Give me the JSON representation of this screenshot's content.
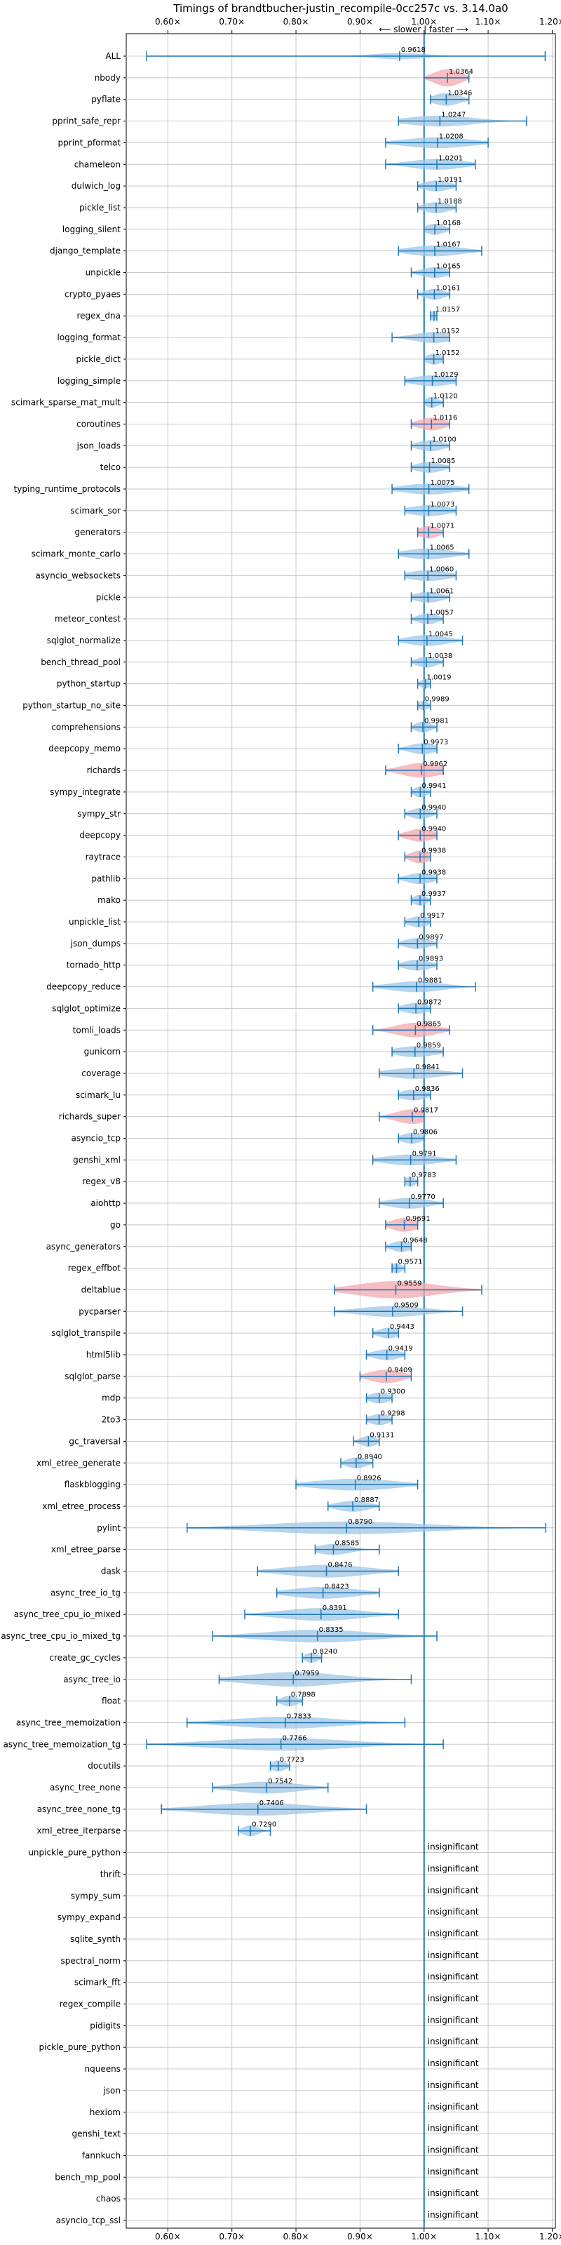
{
  "chart_data": {
    "type": "violin",
    "title": "Timings of brandtbucher-justin_recompile-0cc257c vs. 3.14.0a0",
    "annotation": "⟵ slower | faster ⟶",
    "xlim": [
      0.535,
      1.205
    ],
    "xticks": [
      0.6,
      0.7,
      0.8,
      0.9,
      1.0,
      1.1,
      1.2
    ],
    "xtick_labels": [
      "0.60×",
      "0.70×",
      "0.80×",
      "0.90×",
      "1.00×",
      "1.10×",
      "1.20×"
    ],
    "reference_line": 1.0,
    "grid": true,
    "colors": {
      "faster": "#9ec6e6",
      "slower": "#f3a7ad",
      "line": "#1f77b4",
      "grid": "#c8c8c8"
    },
    "insignificant_label": "insignificant",
    "benchmarks": [
      {
        "name": "ALL",
        "median": 0.9618,
        "min": 0.567,
        "max": 1.189,
        "spread": 0.04,
        "width": 0.35,
        "color": "faster"
      },
      {
        "name": "nbody",
        "median": 1.0364,
        "min": 1.0,
        "max": 1.07,
        "spread": 0.02,
        "width": 0.95,
        "color": "slower"
      },
      {
        "name": "pyflate",
        "median": 1.0346,
        "min": 1.01,
        "max": 1.07,
        "spread": 0.02,
        "width": 0.7,
        "color": "faster"
      },
      {
        "name": "pprint_safe_repr",
        "median": 1.0247,
        "min": 0.96,
        "max": 1.16,
        "spread": 0.05,
        "width": 0.6,
        "color": "faster"
      },
      {
        "name": "pprint_pformat",
        "median": 1.0208,
        "min": 0.94,
        "max": 1.1,
        "spread": 0.05,
        "width": 0.6,
        "color": "faster"
      },
      {
        "name": "chameleon",
        "median": 1.0201,
        "min": 0.94,
        "max": 1.08,
        "spread": 0.04,
        "width": 0.6,
        "color": "faster"
      },
      {
        "name": "dulwich_log",
        "median": 1.0191,
        "min": 0.99,
        "max": 1.05,
        "spread": 0.02,
        "width": 0.6,
        "color": "faster"
      },
      {
        "name": "pickle_list",
        "median": 1.0188,
        "min": 0.99,
        "max": 1.05,
        "spread": 0.02,
        "width": 0.6,
        "color": "faster"
      },
      {
        "name": "logging_silent",
        "median": 1.0168,
        "min": 1.0,
        "max": 1.04,
        "spread": 0.015,
        "width": 0.6,
        "color": "faster"
      },
      {
        "name": "django_template",
        "median": 1.0167,
        "min": 0.96,
        "max": 1.09,
        "spread": 0.04,
        "width": 0.6,
        "color": "faster"
      },
      {
        "name": "unpickle",
        "median": 1.0165,
        "min": 0.98,
        "max": 1.04,
        "spread": 0.02,
        "width": 0.6,
        "color": "faster"
      },
      {
        "name": "crypto_pyaes",
        "median": 1.0161,
        "min": 0.99,
        "max": 1.04,
        "spread": 0.015,
        "width": 0.6,
        "color": "faster"
      },
      {
        "name": "regex_dna",
        "median": 1.0157,
        "min": 1.01,
        "max": 1.02,
        "spread": 0.006,
        "width": 0.55,
        "color": "faster"
      },
      {
        "name": "logging_format",
        "median": 1.0152,
        "min": 0.95,
        "max": 1.04,
        "spread": 0.03,
        "width": 0.6,
        "color": "faster"
      },
      {
        "name": "pickle_dict",
        "median": 1.0152,
        "min": 1.0,
        "max": 1.03,
        "spread": 0.012,
        "width": 0.6,
        "color": "faster"
      },
      {
        "name": "logging_simple",
        "median": 1.0129,
        "min": 0.97,
        "max": 1.05,
        "spread": 0.03,
        "width": 0.6,
        "color": "faster"
      },
      {
        "name": "scimark_sparse_mat_mult",
        "median": 1.012,
        "min": 1.0,
        "max": 1.03,
        "spread": 0.01,
        "width": 0.6,
        "color": "faster"
      },
      {
        "name": "coroutines",
        "median": 1.0116,
        "min": 0.98,
        "max": 1.04,
        "spread": 0.02,
        "width": 0.7,
        "color": "slower"
      },
      {
        "name": "json_loads",
        "median": 1.01,
        "min": 0.98,
        "max": 1.04,
        "spread": 0.02,
        "width": 0.6,
        "color": "faster"
      },
      {
        "name": "telco",
        "median": 1.0085,
        "min": 0.98,
        "max": 1.04,
        "spread": 0.02,
        "width": 0.6,
        "color": "faster"
      },
      {
        "name": "typing_runtime_protocols",
        "median": 1.0075,
        "min": 0.95,
        "max": 1.07,
        "spread": 0.04,
        "width": 0.6,
        "color": "faster"
      },
      {
        "name": "scimark_sor",
        "median": 1.0073,
        "min": 0.97,
        "max": 1.05,
        "spread": 0.03,
        "width": 0.6,
        "color": "faster"
      },
      {
        "name": "generators",
        "median": 1.0071,
        "min": 0.99,
        "max": 1.03,
        "spread": 0.015,
        "width": 0.7,
        "color": "slower"
      },
      {
        "name": "scimark_monte_carlo",
        "median": 1.0065,
        "min": 0.96,
        "max": 1.07,
        "spread": 0.035,
        "width": 0.6,
        "color": "faster"
      },
      {
        "name": "asyncio_websockets",
        "median": 1.006,
        "min": 0.97,
        "max": 1.05,
        "spread": 0.03,
        "width": 0.6,
        "color": "faster"
      },
      {
        "name": "pickle",
        "median": 1.0061,
        "min": 0.98,
        "max": 1.04,
        "spread": 0.02,
        "width": 0.6,
        "color": "faster"
      },
      {
        "name": "meteor_contest",
        "median": 1.0057,
        "min": 0.98,
        "max": 1.03,
        "spread": 0.015,
        "width": 0.6,
        "color": "faster"
      },
      {
        "name": "sqlglot_normalize",
        "median": 1.0045,
        "min": 0.96,
        "max": 1.06,
        "spread": 0.03,
        "width": 0.6,
        "color": "faster"
      },
      {
        "name": "bench_thread_pool",
        "median": 1.0038,
        "min": 0.98,
        "max": 1.03,
        "spread": 0.015,
        "width": 0.6,
        "color": "faster"
      },
      {
        "name": "python_startup",
        "median": 1.0019,
        "min": 0.99,
        "max": 1.01,
        "spread": 0.008,
        "width": 0.5,
        "color": "faster"
      },
      {
        "name": "python_startup_no_site",
        "median": 0.9989,
        "min": 0.99,
        "max": 1.01,
        "spread": 0.008,
        "width": 0.5,
        "color": "faster"
      },
      {
        "name": "comprehensions",
        "median": 0.9981,
        "min": 0.98,
        "max": 1.02,
        "spread": 0.012,
        "width": 0.6,
        "color": "faster"
      },
      {
        "name": "deepcopy_memo",
        "median": 0.9973,
        "min": 0.96,
        "max": 1.02,
        "spread": 0.02,
        "width": 0.6,
        "color": "faster"
      },
      {
        "name": "richards",
        "median": 0.9962,
        "min": 0.94,
        "max": 1.03,
        "spread": 0.03,
        "width": 0.8,
        "color": "slower"
      },
      {
        "name": "sympy_integrate",
        "median": 0.9941,
        "min": 0.98,
        "max": 1.01,
        "spread": 0.01,
        "width": 0.6,
        "color": "faster"
      },
      {
        "name": "sympy_str",
        "median": 0.994,
        "min": 0.97,
        "max": 1.02,
        "spread": 0.015,
        "width": 0.6,
        "color": "faster"
      },
      {
        "name": "deepcopy",
        "median": 0.994,
        "min": 0.96,
        "max": 1.02,
        "spread": 0.02,
        "width": 0.7,
        "color": "slower"
      },
      {
        "name": "raytrace",
        "median": 0.9938,
        "min": 0.97,
        "max": 1.01,
        "spread": 0.015,
        "width": 0.7,
        "color": "slower"
      },
      {
        "name": "pathlib",
        "median": 0.9938,
        "min": 0.96,
        "max": 1.02,
        "spread": 0.02,
        "width": 0.6,
        "color": "faster"
      },
      {
        "name": "mako",
        "median": 0.9937,
        "min": 0.98,
        "max": 1.01,
        "spread": 0.01,
        "width": 0.6,
        "color": "faster"
      },
      {
        "name": "unpickle_list",
        "median": 0.9917,
        "min": 0.97,
        "max": 1.01,
        "spread": 0.015,
        "width": 0.6,
        "color": "faster"
      },
      {
        "name": "json_dumps",
        "median": 0.9897,
        "min": 0.96,
        "max": 1.02,
        "spread": 0.02,
        "width": 0.6,
        "color": "faster"
      },
      {
        "name": "tornado_http",
        "median": 0.9893,
        "min": 0.96,
        "max": 1.02,
        "spread": 0.02,
        "width": 0.6,
        "color": "faster"
      },
      {
        "name": "deepcopy_reduce",
        "median": 0.9881,
        "min": 0.92,
        "max": 1.08,
        "spread": 0.04,
        "width": 0.6,
        "color": "faster"
      },
      {
        "name": "sqlglot_optimize",
        "median": 0.9872,
        "min": 0.96,
        "max": 1.01,
        "spread": 0.02,
        "width": 0.6,
        "color": "faster"
      },
      {
        "name": "tomli_loads",
        "median": 0.9865,
        "min": 0.92,
        "max": 1.04,
        "spread": 0.03,
        "width": 0.8,
        "color": "slower"
      },
      {
        "name": "gunicorn",
        "median": 0.9859,
        "min": 0.95,
        "max": 1.03,
        "spread": 0.03,
        "width": 0.6,
        "color": "faster"
      },
      {
        "name": "coverage",
        "median": 0.9841,
        "min": 0.93,
        "max": 1.06,
        "spread": 0.04,
        "width": 0.6,
        "color": "faster"
      },
      {
        "name": "scimark_lu",
        "median": 0.9836,
        "min": 0.96,
        "max": 1.01,
        "spread": 0.02,
        "width": 0.6,
        "color": "faster"
      },
      {
        "name": "richards_super",
        "median": 0.9817,
        "min": 0.93,
        "max": 1.0,
        "spread": 0.025,
        "width": 0.8,
        "color": "slower"
      },
      {
        "name": "asyncio_tcp",
        "median": 0.9806,
        "min": 0.96,
        "max": 1.0,
        "spread": 0.015,
        "width": 0.6,
        "color": "faster"
      },
      {
        "name": "genshi_xml",
        "median": 0.9791,
        "min": 0.92,
        "max": 1.05,
        "spread": 0.04,
        "width": 0.6,
        "color": "faster"
      },
      {
        "name": "regex_v8",
        "median": 0.9783,
        "min": 0.97,
        "max": 0.99,
        "spread": 0.008,
        "width": 0.55,
        "color": "faster"
      },
      {
        "name": "aiohttp",
        "median": 0.977,
        "min": 0.93,
        "max": 1.03,
        "spread": 0.03,
        "width": 0.6,
        "color": "faster"
      },
      {
        "name": "go",
        "median": 0.9691,
        "min": 0.94,
        "max": 0.99,
        "spread": 0.02,
        "width": 0.75,
        "color": "slower"
      },
      {
        "name": "async_generators",
        "median": 0.9648,
        "min": 0.94,
        "max": 0.98,
        "spread": 0.015,
        "width": 0.6,
        "color": "faster"
      },
      {
        "name": "regex_effbot",
        "median": 0.9571,
        "min": 0.95,
        "max": 0.97,
        "spread": 0.008,
        "width": 0.55,
        "color": "faster"
      },
      {
        "name": "deltablue",
        "median": 0.9559,
        "min": 0.86,
        "max": 1.09,
        "spread": 0.06,
        "width": 0.95,
        "color": "slower"
      },
      {
        "name": "pycparser",
        "median": 0.9509,
        "min": 0.86,
        "max": 1.06,
        "spread": 0.05,
        "width": 0.6,
        "color": "faster"
      },
      {
        "name": "sqlglot_transpile",
        "median": 0.9443,
        "min": 0.92,
        "max": 0.96,
        "spread": 0.015,
        "width": 0.6,
        "color": "faster"
      },
      {
        "name": "html5lib",
        "median": 0.9419,
        "min": 0.91,
        "max": 0.97,
        "spread": 0.02,
        "width": 0.6,
        "color": "faster"
      },
      {
        "name": "sqlglot_parse",
        "median": 0.9409,
        "min": 0.9,
        "max": 0.98,
        "spread": 0.025,
        "width": 0.75,
        "color": "slower"
      },
      {
        "name": "mdp",
        "median": 0.93,
        "min": 0.91,
        "max": 0.95,
        "spread": 0.015,
        "width": 0.6,
        "color": "faster"
      },
      {
        "name": "2to3",
        "median": 0.9298,
        "min": 0.91,
        "max": 0.95,
        "spread": 0.015,
        "width": 0.6,
        "color": "faster"
      },
      {
        "name": "gc_traversal",
        "median": 0.9131,
        "min": 0.89,
        "max": 0.93,
        "spread": 0.012,
        "width": 0.6,
        "color": "faster"
      },
      {
        "name": "xml_etree_generate",
        "median": 0.894,
        "min": 0.87,
        "max": 0.92,
        "spread": 0.015,
        "width": 0.6,
        "color": "faster"
      },
      {
        "name": "flaskblogging",
        "median": 0.8926,
        "min": 0.8,
        "max": 0.99,
        "spread": 0.06,
        "width": 0.65,
        "color": "faster"
      },
      {
        "name": "xml_etree_process",
        "median": 0.8887,
        "min": 0.85,
        "max": 0.93,
        "spread": 0.025,
        "width": 0.6,
        "color": "faster"
      },
      {
        "name": "pylint",
        "median": 0.879,
        "min": 0.63,
        "max": 1.19,
        "spread": 0.12,
        "width": 0.7,
        "color": "faster"
      },
      {
        "name": "xml_etree_parse",
        "median": 0.8585,
        "min": 0.83,
        "max": 0.93,
        "spread": 0.025,
        "width": 0.6,
        "color": "faster"
      },
      {
        "name": "dask",
        "median": 0.8476,
        "min": 0.74,
        "max": 0.96,
        "spread": 0.06,
        "width": 0.7,
        "color": "faster"
      },
      {
        "name": "async_tree_io_tg",
        "median": 0.8423,
        "min": 0.77,
        "max": 0.93,
        "spread": 0.05,
        "width": 0.65,
        "color": "faster"
      },
      {
        "name": "async_tree_cpu_io_mixed",
        "median": 0.8391,
        "min": 0.72,
        "max": 0.96,
        "spread": 0.06,
        "width": 0.7,
        "color": "faster"
      },
      {
        "name": "async_tree_cpu_io_mixed_tg",
        "median": 0.8335,
        "min": 0.67,
        "max": 1.02,
        "spread": 0.08,
        "width": 0.7,
        "color": "faster"
      },
      {
        "name": "create_gc_cycles",
        "median": 0.824,
        "min": 0.81,
        "max": 0.84,
        "spread": 0.01,
        "width": 0.55,
        "color": "faster"
      },
      {
        "name": "async_tree_io",
        "median": 0.7959,
        "min": 0.68,
        "max": 0.98,
        "spread": 0.07,
        "width": 0.8,
        "color": "faster"
      },
      {
        "name": "float",
        "median": 0.7898,
        "min": 0.77,
        "max": 0.81,
        "spread": 0.012,
        "width": 0.6,
        "color": "faster"
      },
      {
        "name": "async_tree_memoization",
        "median": 0.7833,
        "min": 0.63,
        "max": 0.97,
        "spread": 0.08,
        "width": 0.65,
        "color": "faster"
      },
      {
        "name": "async_tree_memoization_tg",
        "median": 0.7766,
        "min": 0.567,
        "max": 1.03,
        "spread": 0.1,
        "width": 0.7,
        "color": "faster"
      },
      {
        "name": "docutils",
        "median": 0.7723,
        "min": 0.76,
        "max": 0.79,
        "spread": 0.012,
        "width": 0.6,
        "color": "faster"
      },
      {
        "name": "async_tree_none",
        "median": 0.7542,
        "min": 0.67,
        "max": 0.85,
        "spread": 0.05,
        "width": 0.65,
        "color": "faster"
      },
      {
        "name": "async_tree_none_tg",
        "median": 0.7406,
        "min": 0.59,
        "max": 0.91,
        "spread": 0.08,
        "width": 0.7,
        "color": "faster"
      },
      {
        "name": "xml_etree_iterparse",
        "median": 0.729,
        "min": 0.71,
        "max": 0.76,
        "spread": 0.012,
        "width": 0.6,
        "color": "faster"
      }
    ],
    "insignificant": [
      "unpickle_pure_python",
      "thrift",
      "sympy_sum",
      "sympy_expand",
      "sqlite_synth",
      "spectral_norm",
      "scimark_fft",
      "regex_compile",
      "pidigits",
      "pickle_pure_python",
      "nqueens",
      "json",
      "hexiom",
      "genshi_text",
      "fannkuch",
      "bench_mp_pool",
      "chaos",
      "asyncio_tcp_ssl"
    ]
  }
}
